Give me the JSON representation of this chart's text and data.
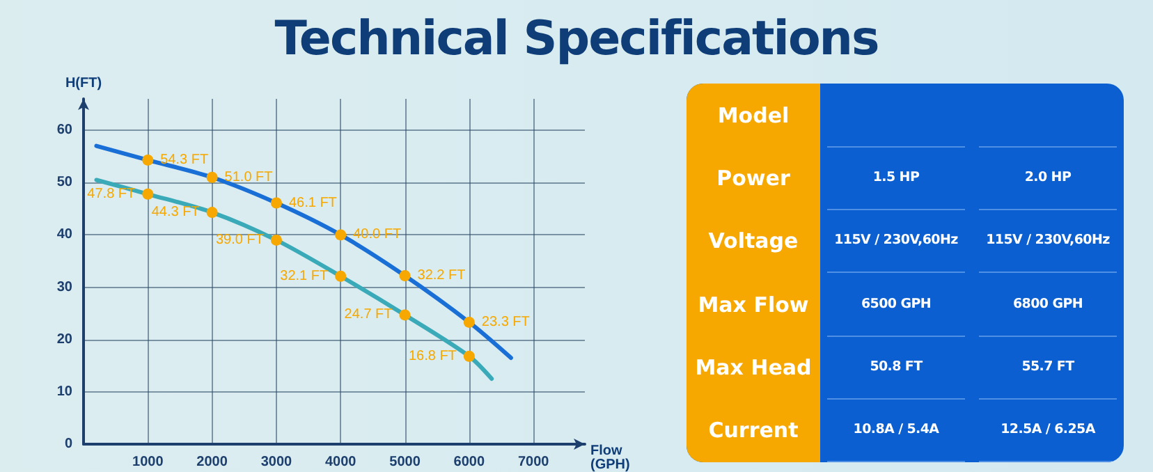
{
  "chart_data": [
    {
      "type": "line",
      "title": "Technical Specifications",
      "xlabel": "Flow (GPH)",
      "ylabel": "H(FT)",
      "xlim": [
        0,
        7800
      ],
      "xticks": [
        1000,
        2000,
        3000,
        4000,
        5000,
        6000,
        7000
      ],
      "ylim": [
        0,
        66
      ],
      "yticks": [
        0,
        10,
        20,
        30,
        40,
        50,
        60
      ],
      "grid": true,
      "marker": "circle",
      "line_style": "solid",
      "series": [
        {
          "color": "#1a6fd6",
          "x": [
            200,
            1000,
            2000,
            3000,
            4000,
            5000,
            6000,
            6650
          ],
          "values": [
            57.0,
            54.3,
            51.0,
            46.1,
            40.0,
            32.2,
            23.3,
            16.5
          ],
          "value_labels": [
            null,
            "54.3 FT",
            "51.0 FT",
            "46.1 FT",
            "40.0 FT",
            "32.2 FT",
            "23.3 FT",
            null
          ]
        },
        {
          "color": "#3aa9b8",
          "x": [
            200,
            1000,
            2000,
            3000,
            4000,
            5000,
            6000,
            6350
          ],
          "values": [
            50.5,
            47.8,
            44.3,
            39.0,
            32.1,
            24.7,
            16.8,
            12.5
          ],
          "value_labels": [
            null,
            "47.8 FT",
            "44.3 FT",
            "39.0 FT",
            "32.1 FT",
            "24.7 FT",
            "16.8 FT",
            null
          ]
        }
      ]
    },
    {
      "type": "other",
      "categories": [
        "Model",
        "Power",
        "Voltage",
        "Max Flow",
        "Max Head",
        "Current"
      ],
      "annotations": [
        "1.5 HP",
        "2.0 HP",
        "115V / 230V,60Hz",
        "115V / 230V,60Hz",
        "6500 GPH",
        "6800 GPH",
        "50.8 FT",
        "55.7 FT",
        "10.8A / 5.4A",
        "12.5A / 6.25A"
      ]
    }
  ]
}
